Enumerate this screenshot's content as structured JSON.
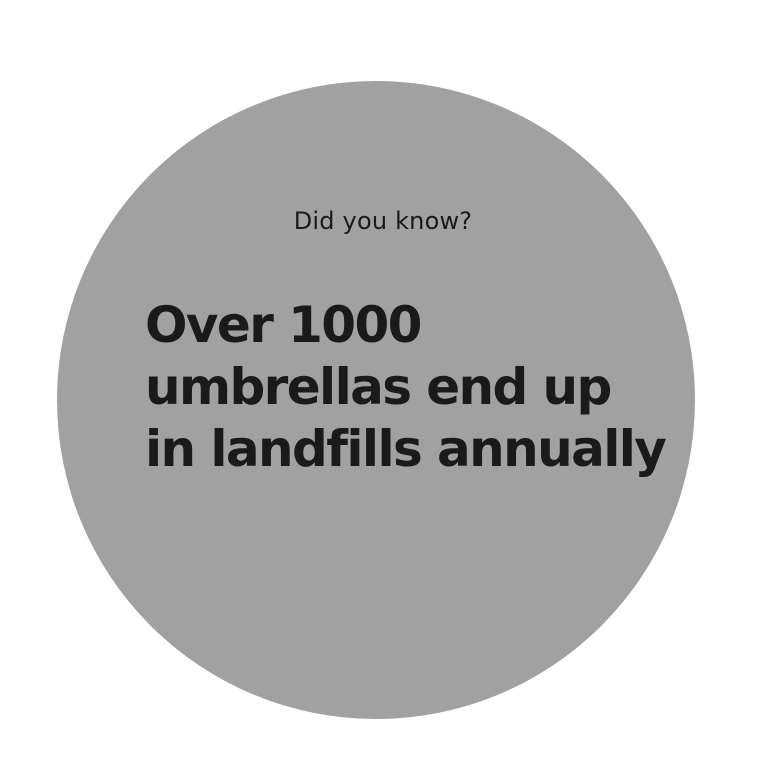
{
  "card": {
    "kicker": "Did you know?",
    "headline_lines": [
      "Over 1000",
      "umbrellas end up",
      "in landfills annually"
    ]
  },
  "colors": {
    "page_background": "#ffffff",
    "circle_fill": "#a1a1a1",
    "text": "#1a1a1a"
  }
}
